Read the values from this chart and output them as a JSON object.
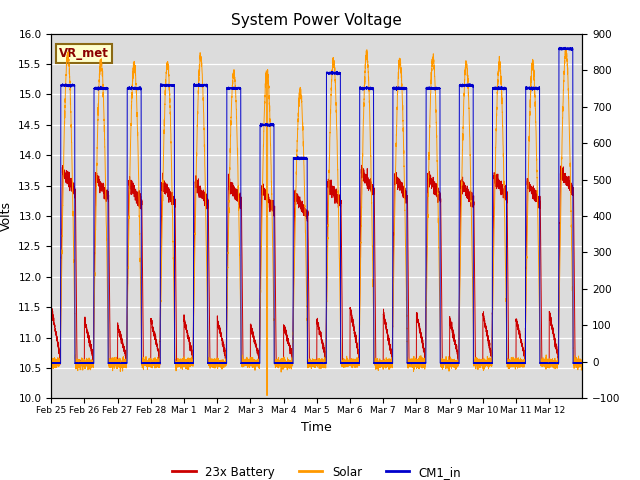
{
  "title": "System Power Voltage",
  "xlabel": "Time",
  "ylabel_left": "Volts",
  "ylim_left": [
    10.0,
    16.0
  ],
  "ylim_right": [
    -100,
    900
  ],
  "annotation": "VR_met",
  "bg_color": "#dcdcdc",
  "line_colors": {
    "battery": "#cc0000",
    "solar": "#ff9900",
    "cm1": "#0000cc"
  },
  "legend_labels": [
    "23x Battery",
    "Solar",
    "CM1_in"
  ],
  "yticks_left": [
    10.0,
    10.5,
    11.0,
    11.5,
    12.0,
    12.5,
    13.0,
    13.5,
    14.0,
    14.5,
    15.0,
    15.5,
    16.0
  ],
  "yticks_right": [
    -100,
    0,
    100,
    200,
    300,
    400,
    500,
    600,
    700,
    800,
    900
  ],
  "xtick_labels": [
    "Feb 25",
    "Feb 26",
    "Feb 27",
    "Feb 28",
    "Mar 1",
    "Mar 2",
    "Mar 3",
    "Mar 4",
    "Mar 5",
    "Mar 6",
    "Mar 7",
    "Mar 8",
    "Mar 9",
    "Mar 10",
    "Mar 11",
    "Mar 12"
  ],
  "n_days": 16,
  "pts_per_day": 480
}
